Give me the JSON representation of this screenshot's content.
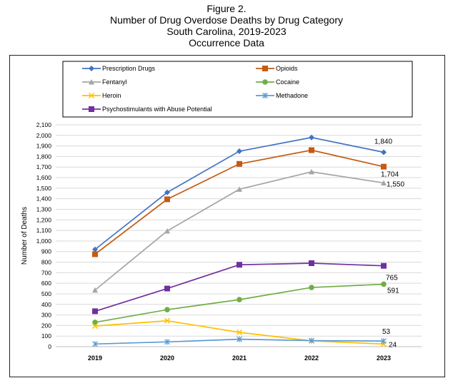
{
  "title_lines": [
    "Figure 2.",
    "Number of Drug Overdose Deaths by Drug Category",
    "South Carolina, 2019-2023",
    "Occurrence Data"
  ],
  "chart_data": {
    "type": "line",
    "x": [
      "2019",
      "2020",
      "2021",
      "2022",
      "2023"
    ],
    "ylabel": "Number of Deaths",
    "xlabel": "",
    "ylim": [
      0,
      2100
    ],
    "ytick_step": 100,
    "grid": true,
    "legend_position": "top",
    "series": [
      {
        "name": "Prescription Drugs",
        "color": "#4472C4",
        "marker": "diamond",
        "values": [
          920,
          1460,
          1850,
          1980,
          1840
        ],
        "end_label": "1,840"
      },
      {
        "name": "Opioids",
        "color": "#C55A11",
        "marker": "square",
        "values": [
          875,
          1395,
          1730,
          1860,
          1704
        ],
        "end_label": "1,704"
      },
      {
        "name": "Fentanyl",
        "color": "#A5A5A5",
        "marker": "triangle",
        "values": [
          535,
          1095,
          1490,
          1655,
          1550
        ],
        "end_label": "1,550"
      },
      {
        "name": "Cocaine",
        "color": "#70AD47",
        "marker": "circle",
        "values": [
          230,
          350,
          445,
          560,
          591
        ],
        "end_label": "591"
      },
      {
        "name": "Heroin",
        "color": "#FFC000",
        "marker": "x",
        "values": [
          195,
          245,
          135,
          55,
          24
        ],
        "end_label": "24"
      },
      {
        "name": "Methadone",
        "color": "#5B9BD5",
        "marker": "star",
        "values": [
          25,
          45,
          70,
          57,
          53
        ],
        "end_label": "53"
      },
      {
        "name": "Psychostimulants with Abuse Potential",
        "color": "#7030A0",
        "marker": "square",
        "values": [
          335,
          550,
          775,
          790,
          765
        ],
        "end_label": "765"
      }
    ]
  }
}
